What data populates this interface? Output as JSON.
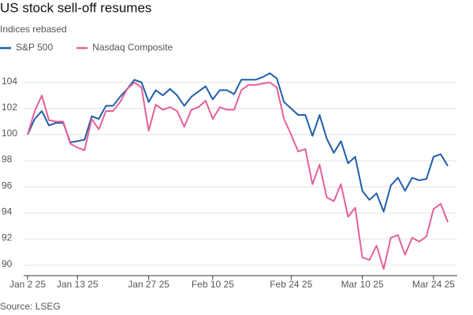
{
  "chart_data": {
    "type": "line",
    "title": "US stock sell-off resumes",
    "subtitle": "Indices rebased",
    "source": "Source: LSEG",
    "legend": "top-left",
    "grid": true,
    "categories": [
      "Jan 2 25",
      null,
      null,
      null,
      null,
      null,
      null,
      "Jan 13 25",
      null,
      null,
      null,
      null,
      null,
      null,
      null,
      null,
      null,
      "Jan 27 25",
      null,
      null,
      null,
      null,
      null,
      null,
      null,
      null,
      "Feb 10 25",
      null,
      null,
      null,
      null,
      null,
      null,
      null,
      null,
      null,
      null,
      "Feb 24 25",
      null,
      null,
      null,
      null,
      null,
      null,
      null,
      null,
      null,
      "Mar 10 25",
      null,
      null,
      null,
      null,
      null,
      null,
      null,
      null,
      null,
      "Mar 24 25",
      null,
      null
    ],
    "ylim": [
      89.2,
      105
    ],
    "yticks": [
      90,
      92,
      94,
      96,
      98,
      100,
      102,
      104
    ],
    "series": [
      {
        "name": "S&P 500",
        "color": "#1f5ea8",
        "values": [
          100,
          101.2,
          101.8,
          100.7,
          100.9,
          100.9,
          99.4,
          99.5,
          99.6,
          101.4,
          101.2,
          102.2,
          102.2,
          102.9,
          103.5,
          104.2,
          104.0,
          102.5,
          103.4,
          103.0,
          103.5,
          103.0,
          102.2,
          102.9,
          103.3,
          103.7,
          102.7,
          103.4,
          103.4,
          103.1,
          104.2,
          104.2,
          104.2,
          104.4,
          104.7,
          104.3,
          102.5,
          102.0,
          101.5,
          101.5,
          99.9,
          101.5,
          99.7,
          98.6,
          99.5,
          97.8,
          98.3,
          95.7,
          95.0,
          95.5,
          94.1,
          96.1,
          96.7,
          95.7,
          96.7,
          96.5,
          96.6,
          98.3,
          98.5,
          97.6
        ]
      },
      {
        "name": "Nasdaq Composite",
        "color": "#e5609a",
        "values": [
          100,
          101.8,
          103.0,
          101.1,
          101.0,
          101.0,
          99.3,
          99.0,
          98.8,
          101.2,
          100.4,
          101.8,
          101.8,
          102.5,
          103.5,
          104.0,
          103.6,
          100.3,
          102.3,
          101.9,
          102.1,
          101.8,
          100.6,
          101.9,
          102.1,
          102.6,
          101.2,
          102.1,
          101.9,
          101.9,
          103.4,
          103.8,
          103.8,
          103.9,
          104.0,
          103.6,
          101.2,
          100.0,
          98.7,
          98.9,
          96.2,
          97.7,
          95.2,
          94.9,
          96.2,
          93.7,
          94.4,
          90.6,
          90.4,
          91.5,
          89.7,
          92.1,
          92.3,
          90.8,
          92.1,
          91.8,
          92.2,
          94.3,
          94.7,
          93.3
        ]
      }
    ]
  }
}
